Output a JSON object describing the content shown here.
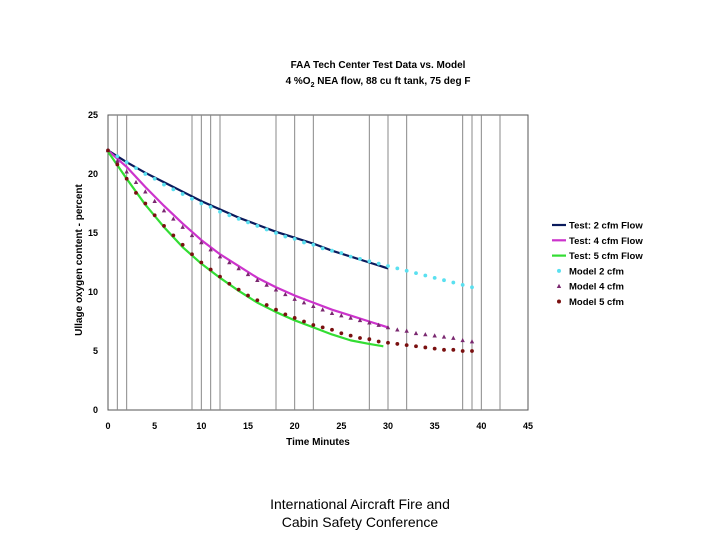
{
  "footer": {
    "line1": "International Aircraft Fire and",
    "line2": "Cabin Safety Conference"
  },
  "chart_data": {
    "type": "line",
    "title": "FAA Tech Center Test Data vs. Model",
    "subtitle_parts": [
      "4 %O",
      "2",
      " NEA flow, 88 cu ft tank, 75 deg F"
    ],
    "xlabel": "Time Minutes",
    "ylabel": "Ullage oxygen content - percent",
    "xlim": [
      0,
      45
    ],
    "ylim": [
      0,
      25
    ],
    "x_ticks": [
      0,
      5,
      10,
      15,
      20,
      25,
      30,
      35,
      40,
      45
    ],
    "y_ticks": [
      0,
      5,
      10,
      15,
      20,
      25
    ],
    "vertical_gridlines_x": [
      1,
      2,
      9,
      10,
      11,
      12,
      18,
      20,
      22,
      28,
      30,
      32,
      38,
      39,
      40,
      42
    ],
    "legend_position": "right",
    "colors": {
      "test2": "#0a1a5c",
      "test4": "#cc33cc",
      "test5": "#33dd33",
      "model2": "#5ae0f0",
      "model4": "#7a2870",
      "model5": "#7a1010"
    },
    "series": [
      {
        "name": "Test: 2 cfm Flow",
        "kind": "line",
        "color_key": "test2",
        "x": [
          0,
          2,
          4,
          6,
          8,
          10,
          12,
          14,
          16,
          18,
          20,
          22,
          24,
          26,
          28,
          30
        ],
        "y": [
          22.0,
          21.0,
          20.1,
          19.3,
          18.5,
          17.7,
          17.0,
          16.3,
          15.7,
          15.1,
          14.6,
          14.1,
          13.5,
          13.0,
          12.5,
          12.0
        ]
      },
      {
        "name": "Test: 4 cfm Flow",
        "kind": "line",
        "color_key": "test4",
        "x": [
          0,
          2,
          4,
          6,
          8,
          10,
          12,
          14,
          16,
          18,
          20,
          22,
          24,
          26,
          28,
          30
        ],
        "y": [
          22.0,
          20.6,
          18.9,
          17.3,
          15.8,
          14.4,
          13.2,
          12.2,
          11.2,
          10.4,
          9.7,
          9.1,
          8.5,
          8.0,
          7.5,
          7.0
        ]
      },
      {
        "name": "Test: 5 cfm Flow",
        "kind": "line",
        "color_key": "test5",
        "x": [
          0,
          2,
          4,
          6,
          8,
          10,
          12,
          14,
          16,
          18,
          20,
          22,
          24,
          26,
          28,
          29.5
        ],
        "y": [
          21.9,
          19.6,
          17.4,
          15.5,
          13.8,
          12.4,
          11.2,
          10.1,
          9.1,
          8.3,
          7.6,
          7.0,
          6.4,
          5.9,
          5.6,
          5.4
        ]
      },
      {
        "name": "Model 2 cfm",
        "kind": "marker",
        "marker": "circle",
        "color_key": "model2",
        "x": [
          0,
          1,
          2,
          3,
          4,
          5,
          6,
          7,
          8,
          9,
          10,
          11,
          12,
          13,
          14,
          15,
          16,
          17,
          18,
          19,
          20,
          21,
          22,
          23,
          24,
          25,
          26,
          27,
          28,
          29,
          30,
          31,
          32,
          33,
          34,
          35,
          36,
          37,
          38,
          39
        ],
        "y": [
          22.0,
          21.5,
          21.0,
          20.5,
          20.0,
          19.6,
          19.1,
          18.7,
          18.3,
          17.9,
          17.5,
          17.2,
          16.8,
          16.5,
          16.2,
          15.9,
          15.6,
          15.3,
          15.0,
          14.7,
          14.5,
          14.2,
          14.0,
          13.7,
          13.5,
          13.3,
          13.0,
          12.8,
          12.6,
          12.4,
          12.2,
          12.0,
          11.8,
          11.6,
          11.4,
          11.2,
          11.0,
          10.8,
          10.6,
          10.4
        ]
      },
      {
        "name": "Model 4 cfm",
        "kind": "marker",
        "marker": "triangle",
        "color_key": "model4",
        "x": [
          0,
          1,
          2,
          3,
          4,
          5,
          6,
          7,
          8,
          9,
          10,
          11,
          12,
          13,
          14,
          15,
          16,
          17,
          18,
          19,
          20,
          21,
          22,
          23,
          24,
          25,
          26,
          27,
          28,
          29,
          30,
          31,
          32,
          33,
          34,
          35,
          36,
          37,
          38,
          39
        ],
        "y": [
          22.0,
          21.1,
          20.2,
          19.3,
          18.5,
          17.7,
          16.9,
          16.2,
          15.5,
          14.8,
          14.2,
          13.6,
          13.0,
          12.5,
          12.0,
          11.5,
          11.0,
          10.6,
          10.2,
          9.8,
          9.4,
          9.1,
          8.8,
          8.5,
          8.2,
          8.0,
          7.8,
          7.6,
          7.4,
          7.2,
          7.0,
          6.8,
          6.7,
          6.5,
          6.4,
          6.3,
          6.2,
          6.1,
          5.9,
          5.8
        ]
      },
      {
        "name": "Model 5 cfm",
        "kind": "marker",
        "marker": "circle",
        "color_key": "model5",
        "x": [
          0,
          1,
          2,
          3,
          4,
          5,
          6,
          7,
          8,
          9,
          10,
          11,
          12,
          13,
          14,
          15,
          16,
          17,
          18,
          19,
          20,
          21,
          22,
          23,
          24,
          25,
          26,
          27,
          28,
          29,
          30,
          31,
          32,
          33,
          34,
          35,
          36,
          37,
          38,
          39
        ],
        "y": [
          22.0,
          20.8,
          19.6,
          18.4,
          17.5,
          16.5,
          15.6,
          14.8,
          14.0,
          13.2,
          12.5,
          11.9,
          11.3,
          10.7,
          10.2,
          9.7,
          9.3,
          8.9,
          8.5,
          8.1,
          7.8,
          7.5,
          7.2,
          7.0,
          6.8,
          6.5,
          6.3,
          6.1,
          6.0,
          5.8,
          5.7,
          5.6,
          5.5,
          5.4,
          5.3,
          5.2,
          5.1,
          5.1,
          5.0,
          5.0
        ]
      }
    ]
  }
}
